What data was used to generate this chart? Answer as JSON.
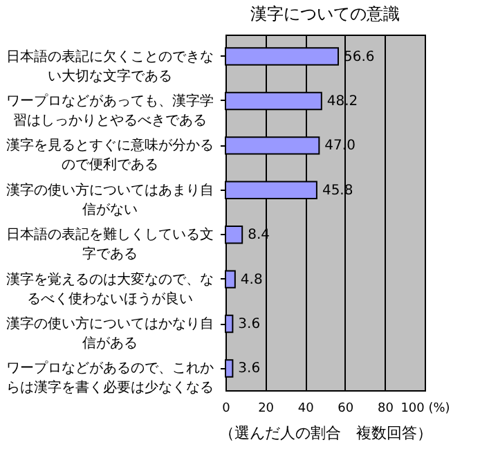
{
  "chart_data": {
    "type": "bar",
    "orientation": "horizontal",
    "title": "漢字についての意識",
    "xlabel": "（選んだ人の割合　複数回答）",
    "categories": [
      "日本語の表記に欠くことのできない大切な文字である",
      "ワープロなどがあっても、漢字学習はしっかりとやるべきである",
      "漢字を見るとすぐに意味が分かるので便利である",
      "漢字の使い方についてはあまり自信がない",
      "日本語の表記を難しくしている文字である",
      "漢字を覚えるのは大変なので、なるべく使わないほうが良い",
      "漢字の使い方についてはかなり自信がある",
      "ワープロなどがあるので、これからは漢字を書く必要は少なくなる"
    ],
    "values": [
      56.6,
      48.2,
      47.0,
      45.8,
      8.4,
      4.8,
      3.6,
      3.6
    ],
    "value_labels": [
      "56.6",
      "48.2",
      "47.0",
      "45.8",
      "8.4",
      "4.8",
      "3.6",
      "3.6"
    ],
    "color": "#9999ff",
    "xlim": [
      0,
      100
    ],
    "xticks": [
      0,
      20,
      40,
      60,
      80,
      {
        "value": 100,
        "label": "100 (%)"
      }
    ],
    "grid": "x"
  }
}
